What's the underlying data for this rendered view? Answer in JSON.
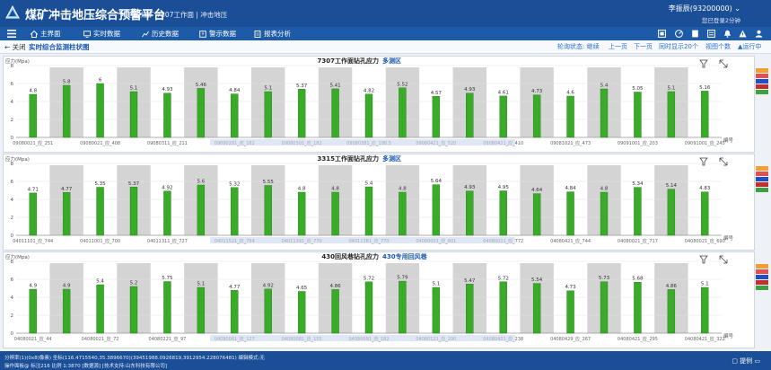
{
  "header": {
    "app_title": "煤矿冲击地压综合预警平台",
    "mine_info": "唐口煤矿  7307工作面  |  冲击地压",
    "user_name": "李振辰(93200000) ⌄",
    "login_status": "您已登录2分钟"
  },
  "nav": {
    "items": [
      {
        "label": "主界面",
        "icon": "home-icon"
      },
      {
        "label": "实时数据",
        "icon": "monitor-icon"
      },
      {
        "label": "历史数据",
        "icon": "chart-icon"
      },
      {
        "label": "警示数据",
        "icon": "alert-icon"
      },
      {
        "label": "报表分析",
        "icon": "report-icon"
      }
    ]
  },
  "subbar": {
    "close_label": "← 关闭",
    "page_name": "实时综合监测柱状图",
    "links": [
      "轮询状态: 继续",
      "上一页",
      "下一页",
      "同时显示20个",
      "视图个数",
      "▲运行中"
    ]
  },
  "colors": {
    "bar": "#3aab28",
    "bar_edge": "#1f7a14",
    "shade": "#d4d4d4",
    "header_bg": "#1a4f97",
    "accent": "#1a56b0"
  },
  "chart_data": [
    {
      "type": "bar",
      "title": "7307工作面钻孔应力",
      "subtitle": "多测区",
      "ylabel": "应力(Mpa)",
      "xlabel": "编号",
      "ylim": [
        0,
        8
      ],
      "yticks": [
        0,
        2,
        4,
        6,
        8
      ],
      "values": [
        4.8,
        5.8,
        6,
        5.1,
        4.93,
        5.46,
        4.84,
        5.1,
        5.37,
        5.41,
        4.82,
        5.52,
        4.57,
        4.93,
        4.61,
        4.73,
        4.6,
        5.4,
        5.05,
        5.1,
        5.16
      ],
      "shaded": [
        false,
        true,
        false,
        true,
        false,
        true,
        false,
        true,
        false,
        true,
        false,
        true,
        false,
        true,
        false,
        true,
        false,
        true,
        false,
        true,
        false
      ],
      "tick_labels": [
        "09080021_应_251",
        "09080021_应_408",
        "09080311_应_211",
        "09080281_应_182",
        "09080301_应_182",
        "09080381_应_198.5",
        "09080421_应_520",
        "09080421_应_410",
        "09081021_应_473",
        "09091001_应_203",
        "09091001_应_245"
      ]
    },
    {
      "type": "bar",
      "title": "3315工作面钻孔应力",
      "subtitle": "多测区",
      "ylabel": "应力(Mpa)",
      "xlabel": "编号",
      "ylim": [
        0,
        8
      ],
      "yticks": [
        0,
        2,
        4,
        6,
        8
      ],
      "values": [
        4.71,
        4.77,
        5.35,
        5.37,
        4.92,
        5.6,
        5.32,
        5.55,
        4.8,
        4.8,
        5.4,
        4.8,
        5.64,
        4.93,
        4.95,
        4.64,
        4.84,
        4.8,
        5.34,
        5.14,
        4.83
      ],
      "shaded": [
        false,
        true,
        false,
        true,
        false,
        true,
        false,
        true,
        false,
        true,
        false,
        true,
        false,
        true,
        false,
        true,
        false,
        true,
        false,
        true,
        false
      ],
      "tick_labels": [
        "04011101_应_744",
        "04011001_应_700",
        "04011311_应_727",
        "04011521_应_754",
        "04011391_应_770",
        "04011381_应_770",
        "04080001_应_801",
        "04080021_应_772",
        "04080421_应_744",
        "04080021_应_717",
        "04080021_应_690"
      ]
    },
    {
      "type": "bar",
      "title": "430回风巷钻孔应力",
      "subtitle": "430专用回风巷",
      "ylabel": "应力(Mpa)",
      "xlabel": "编号",
      "ylim": [
        0,
        8
      ],
      "yticks": [
        0,
        2,
        4,
        6,
        8
      ],
      "values": [
        4.9,
        4.9,
        5.4,
        5.2,
        5.75,
        5.1,
        4.77,
        4.92,
        4.65,
        4.86,
        5.72,
        5.79,
        5.1,
        5.47,
        5.72,
        5.54,
        4.73,
        5.73,
        5.68,
        4.86,
        5.1
      ],
      "shaded": [
        false,
        true,
        false,
        true,
        false,
        true,
        false,
        true,
        false,
        true,
        false,
        true,
        false,
        true,
        false,
        true,
        false,
        true,
        false,
        true,
        false
      ],
      "tick_labels": [
        "04080021_应_44",
        "04080021_应_72",
        "04080221_应_97",
        "04080061_应_127",
        "04080081_应_155",
        "04080091_应_182",
        "04080121_应_200",
        "04080421_应_238",
        "04080429_应_267",
        "04080421_应_295",
        "04080421_应_322"
      ]
    }
  ]
}
